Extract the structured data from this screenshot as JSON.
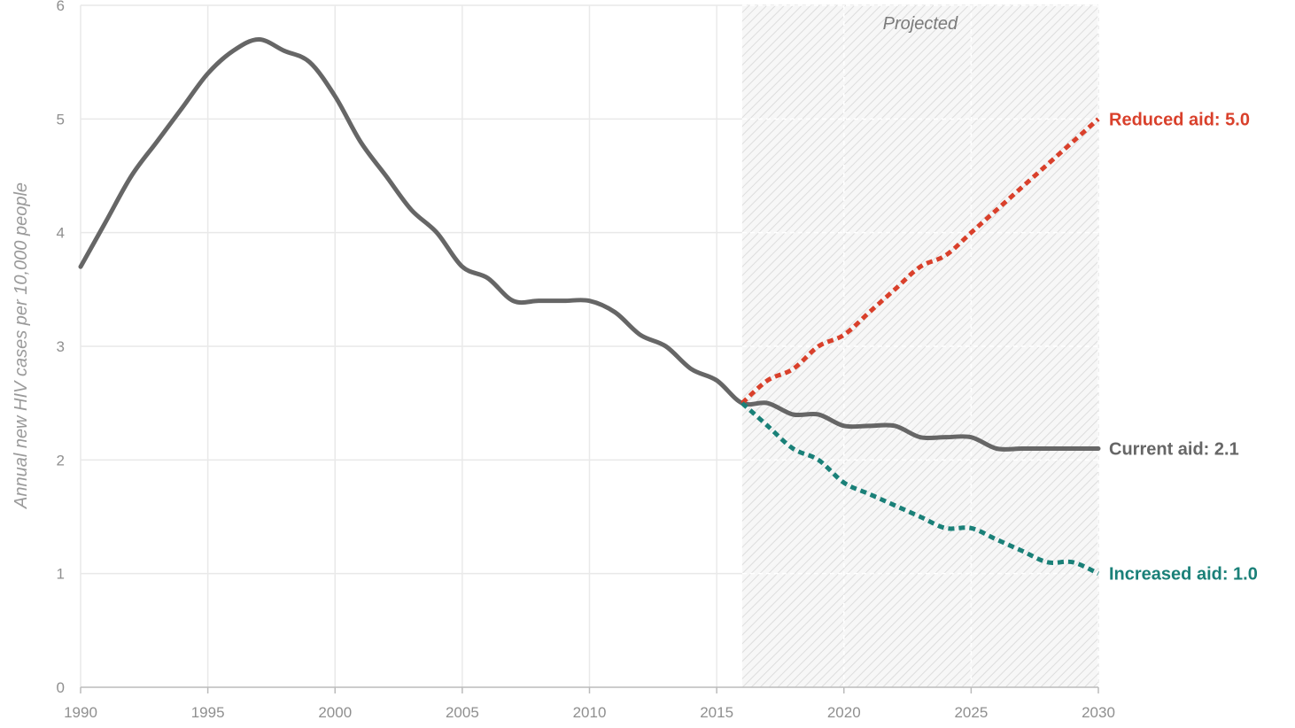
{
  "chart_data": {
    "type": "line",
    "title": "",
    "xlabel": "",
    "ylabel": "Annual new HIV cases per 10,000 people",
    "xlim": [
      1990,
      2030
    ],
    "ylim": [
      0,
      6
    ],
    "x_ticks": [
      1990,
      1995,
      2000,
      2005,
      2010,
      2015,
      2020,
      2025,
      2030
    ],
    "y_ticks": [
      0,
      1,
      2,
      3,
      4,
      5,
      6
    ],
    "grid": true,
    "projected_region": {
      "start": 2016,
      "end": 2030,
      "label": "Projected"
    },
    "series": [
      {
        "name": "Current aid",
        "end_label": "Current aid: 2.1",
        "color": "#666666",
        "style": "solid",
        "x": [
          1990,
          1991,
          1992,
          1993,
          1994,
          1995,
          1996,
          1997,
          1998,
          1999,
          2000,
          2001,
          2002,
          2003,
          2004,
          2005,
          2006,
          2007,
          2008,
          2009,
          2010,
          2011,
          2012,
          2013,
          2014,
          2015,
          2016,
          2017,
          2018,
          2019,
          2020,
          2021,
          2022,
          2023,
          2024,
          2025,
          2026,
          2027,
          2028,
          2029,
          2030
        ],
        "y": [
          3.7,
          4.1,
          4.5,
          4.8,
          5.1,
          5.4,
          5.6,
          5.7,
          5.6,
          5.5,
          5.2,
          4.8,
          4.5,
          4.2,
          4.0,
          3.7,
          3.6,
          3.4,
          3.4,
          3.4,
          3.4,
          3.3,
          3.1,
          3.0,
          2.8,
          2.7,
          2.5,
          2.5,
          2.4,
          2.4,
          2.3,
          2.3,
          2.3,
          2.2,
          2.2,
          2.2,
          2.1,
          2.1,
          2.1,
          2.1,
          2.1
        ]
      },
      {
        "name": "Reduced aid",
        "end_label": "Reduced aid: 5.0",
        "color": "#d9402b",
        "style": "dotted",
        "x": [
          2016,
          2017,
          2018,
          2019,
          2020,
          2021,
          2022,
          2023,
          2024,
          2025,
          2026,
          2027,
          2028,
          2029,
          2030
        ],
        "y": [
          2.5,
          2.7,
          2.8,
          3.0,
          3.1,
          3.3,
          3.5,
          3.7,
          3.8,
          4.0,
          4.2,
          4.4,
          4.6,
          4.8,
          5.0
        ]
      },
      {
        "name": "Increased aid",
        "end_label": "Increased aid: 1.0",
        "color": "#1a8078",
        "style": "dotted",
        "x": [
          2016,
          2017,
          2018,
          2019,
          2020,
          2021,
          2022,
          2023,
          2024,
          2025,
          2026,
          2027,
          2028,
          2029,
          2030
        ],
        "y": [
          2.5,
          2.3,
          2.1,
          2.0,
          1.8,
          1.7,
          1.6,
          1.5,
          1.4,
          1.4,
          1.3,
          1.2,
          1.1,
          1.1,
          1.0
        ]
      }
    ]
  }
}
